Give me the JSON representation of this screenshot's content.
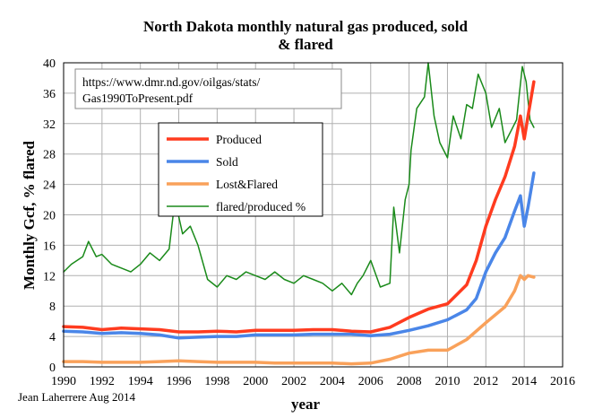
{
  "chart_data": {
    "type": "line",
    "title_line1": "North Dakota monthly natural gas produced, sold",
    "title_line2": "& flared",
    "ylabel": "Monthly Gcf, % flared",
    "xlabel": "year",
    "credit": "Jean Laherrere Aug 2014",
    "source_line1": "https://www.dmr.nd.gov/oilgas/stats/",
    "source_line2": "Gas1990ToPresent.pdf",
    "xlim": [
      1990,
      2016
    ],
    "ylim": [
      0,
      40
    ],
    "x_ticks": [
      "1990",
      "1992",
      "1994",
      "1996",
      "1998",
      "2000",
      "2002",
      "2004",
      "2006",
      "2008",
      "2010",
      "2012",
      "2014",
      "2016"
    ],
    "y_ticks": [
      "0",
      "4",
      "8",
      "12",
      "16",
      "20",
      "24",
      "28",
      "32",
      "36",
      "40"
    ],
    "grid": true,
    "legend_position": "center-left",
    "series": [
      {
        "name": "Produced",
        "color": "#ff3b1f",
        "width": 3.5,
        "points": [
          [
            1990,
            5.3
          ],
          [
            1991,
            5.2
          ],
          [
            1992,
            4.9
          ],
          [
            1993,
            5.1
          ],
          [
            1994,
            5.0
          ],
          [
            1995,
            4.9
          ],
          [
            1996,
            4.6
          ],
          [
            1997,
            4.6
          ],
          [
            1998,
            4.7
          ],
          [
            1999,
            4.6
          ],
          [
            2000,
            4.8
          ],
          [
            2001,
            4.8
          ],
          [
            2002,
            4.8
          ],
          [
            2003,
            4.9
          ],
          [
            2004,
            4.9
          ],
          [
            2005,
            4.7
          ],
          [
            2006,
            4.6
          ],
          [
            2007,
            5.2
          ],
          [
            2008,
            6.5
          ],
          [
            2009,
            7.6
          ],
          [
            2010,
            8.3
          ],
          [
            2011,
            10.8
          ],
          [
            2011.5,
            14
          ],
          [
            2012,
            18.5
          ],
          [
            2012.5,
            22
          ],
          [
            2013,
            25
          ],
          [
            2013.5,
            29
          ],
          [
            2013.8,
            33
          ],
          [
            2014.0,
            30
          ],
          [
            2014.2,
            33
          ],
          [
            2014.5,
            37.5
          ]
        ]
      },
      {
        "name": "Sold",
        "color": "#4a86e8",
        "width": 3.5,
        "points": [
          [
            1990,
            4.7
          ],
          [
            1991,
            4.6
          ],
          [
            1992,
            4.4
          ],
          [
            1993,
            4.5
          ],
          [
            1994,
            4.4
          ],
          [
            1995,
            4.2
          ],
          [
            1996,
            3.8
          ],
          [
            1997,
            3.9
          ],
          [
            1998,
            4.0
          ],
          [
            1999,
            4.0
          ],
          [
            2000,
            4.2
          ],
          [
            2001,
            4.2
          ],
          [
            2002,
            4.2
          ],
          [
            2003,
            4.3
          ],
          [
            2004,
            4.3
          ],
          [
            2005,
            4.3
          ],
          [
            2006,
            4.1
          ],
          [
            2007,
            4.3
          ],
          [
            2008,
            4.8
          ],
          [
            2009,
            5.4
          ],
          [
            2010,
            6.2
          ],
          [
            2011,
            7.5
          ],
          [
            2011.5,
            9
          ],
          [
            2012,
            12.5
          ],
          [
            2012.5,
            15
          ],
          [
            2013,
            17
          ],
          [
            2013.5,
            20.5
          ],
          [
            2013.8,
            22.5
          ],
          [
            2014.0,
            18.5
          ],
          [
            2014.2,
            21
          ],
          [
            2014.5,
            25.5
          ]
        ]
      },
      {
        "name": "Lost&Flared",
        "color": "#f9a15a",
        "width": 3.5,
        "points": [
          [
            1990,
            0.7
          ],
          [
            1991,
            0.7
          ],
          [
            1992,
            0.6
          ],
          [
            1993,
            0.6
          ],
          [
            1994,
            0.6
          ],
          [
            1995,
            0.7
          ],
          [
            1996,
            0.8
          ],
          [
            1997,
            0.7
          ],
          [
            1998,
            0.6
          ],
          [
            1999,
            0.6
          ],
          [
            2000,
            0.6
          ],
          [
            2001,
            0.5
          ],
          [
            2002,
            0.5
          ],
          [
            2003,
            0.5
          ],
          [
            2004,
            0.5
          ],
          [
            2005,
            0.4
          ],
          [
            2006,
            0.5
          ],
          [
            2007,
            1.0
          ],
          [
            2008,
            1.8
          ],
          [
            2009,
            2.2
          ],
          [
            2010,
            2.2
          ],
          [
            2011,
            3.6
          ],
          [
            2012,
            5.8
          ],
          [
            2013,
            7.9
          ],
          [
            2013.5,
            10
          ],
          [
            2013.8,
            12.0
          ],
          [
            2014.0,
            11.5
          ],
          [
            2014.2,
            12.0
          ],
          [
            2014.5,
            11.8
          ]
        ]
      },
      {
        "name": "flared/produced %",
        "color": "#1a8a1a",
        "width": 1.5,
        "points": [
          [
            1990,
            12.5
          ],
          [
            1990.4,
            13.5
          ],
          [
            1991,
            14.5
          ],
          [
            1991.3,
            16.5
          ],
          [
            1991.7,
            14.5
          ],
          [
            1992,
            14.8
          ],
          [
            1992.5,
            13.5
          ],
          [
            1993,
            13.0
          ],
          [
            1993.5,
            12.5
          ],
          [
            1994,
            13.5
          ],
          [
            1994.5,
            15.0
          ],
          [
            1995,
            14.0
          ],
          [
            1995.5,
            15.5
          ],
          [
            1995.8,
            22.0
          ],
          [
            1996.2,
            17.5
          ],
          [
            1996.6,
            18.5
          ],
          [
            1997,
            16.0
          ],
          [
            1997.5,
            11.5
          ],
          [
            1998,
            10.5
          ],
          [
            1998.5,
            12.0
          ],
          [
            1999,
            11.5
          ],
          [
            1999.5,
            12.5
          ],
          [
            2000,
            12.0
          ],
          [
            2000.5,
            11.5
          ],
          [
            2001,
            12.5
          ],
          [
            2001.5,
            11.5
          ],
          [
            2002,
            11.0
          ],
          [
            2002.5,
            12.0
          ],
          [
            2003,
            11.5
          ],
          [
            2003.5,
            11.0
          ],
          [
            2004,
            10.0
          ],
          [
            2004.5,
            11.0
          ],
          [
            2005,
            9.5
          ],
          [
            2005.3,
            11.0
          ],
          [
            2005.6,
            12.0
          ],
          [
            2006,
            14.0
          ],
          [
            2006.5,
            10.5
          ],
          [
            2007,
            11.0
          ],
          [
            2007.2,
            21.0
          ],
          [
            2007.5,
            15.0
          ],
          [
            2007.8,
            22.0
          ],
          [
            2008,
            24.0
          ],
          [
            2008.1,
            28.5
          ],
          [
            2008.4,
            34.0
          ],
          [
            2008.8,
            35.5
          ],
          [
            2009,
            40.0
          ],
          [
            2009.3,
            33.0
          ],
          [
            2009.6,
            29.5
          ],
          [
            2010,
            27.5
          ],
          [
            2010.3,
            33.0
          ],
          [
            2010.7,
            30.0
          ],
          [
            2011,
            34.5
          ],
          [
            2011.3,
            34.0
          ],
          [
            2011.6,
            38.5
          ],
          [
            2012,
            36.0
          ],
          [
            2012.3,
            31.5
          ],
          [
            2012.7,
            34.0
          ],
          [
            2013,
            29.5
          ],
          [
            2013.3,
            31.0
          ],
          [
            2013.6,
            32.5
          ],
          [
            2013.9,
            39.5
          ],
          [
            2014.1,
            37.5
          ],
          [
            2014.3,
            32.5
          ],
          [
            2014.5,
            31.5
          ]
        ]
      }
    ]
  }
}
